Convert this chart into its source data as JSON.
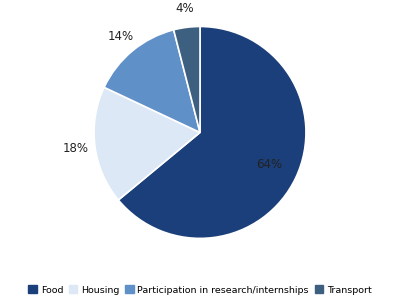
{
  "labels": [
    "Food",
    "Housing",
    "Participation in research/internships",
    "Transport"
  ],
  "values": [
    64,
    18,
    14,
    4
  ],
  "colors": [
    "#1b3f7a",
    "#dce8f5",
    "#6090c8",
    "#3d5f80"
  ],
  "pct_labels": [
    "64%",
    "18%",
    "14%",
    "4%"
  ],
  "startangle": 90,
  "legend_labels": [
    "Food",
    "Housing",
    "Participation in research/internships",
    "Transport"
  ],
  "background_color": "#ffffff",
  "edge_color": "#ffffff",
  "edge_linewidth": 1.2,
  "label_radii": [
    0.72,
    1.18,
    1.18,
    1.18
  ],
  "label_fontsize": 8.5,
  "legend_fontsize": 6.8
}
